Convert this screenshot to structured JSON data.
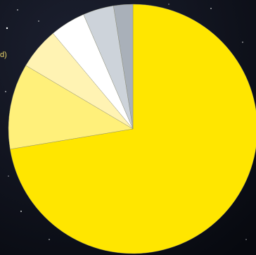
{
  "chart_data": {
    "type": "pie",
    "categories": [
      null,
      null,
      null,
      null,
      null,
      null
    ],
    "values": [
      72.4,
      11.1,
      5.4,
      4.6,
      4.0,
      2.5
    ],
    "colors": [
      "#ffe600",
      "#fff07a",
      "#fff3b3",
      "#ffffff",
      "#cdd3da",
      "#a9b0b9"
    ],
    "annotations": [
      "d)"
    ]
  }
}
